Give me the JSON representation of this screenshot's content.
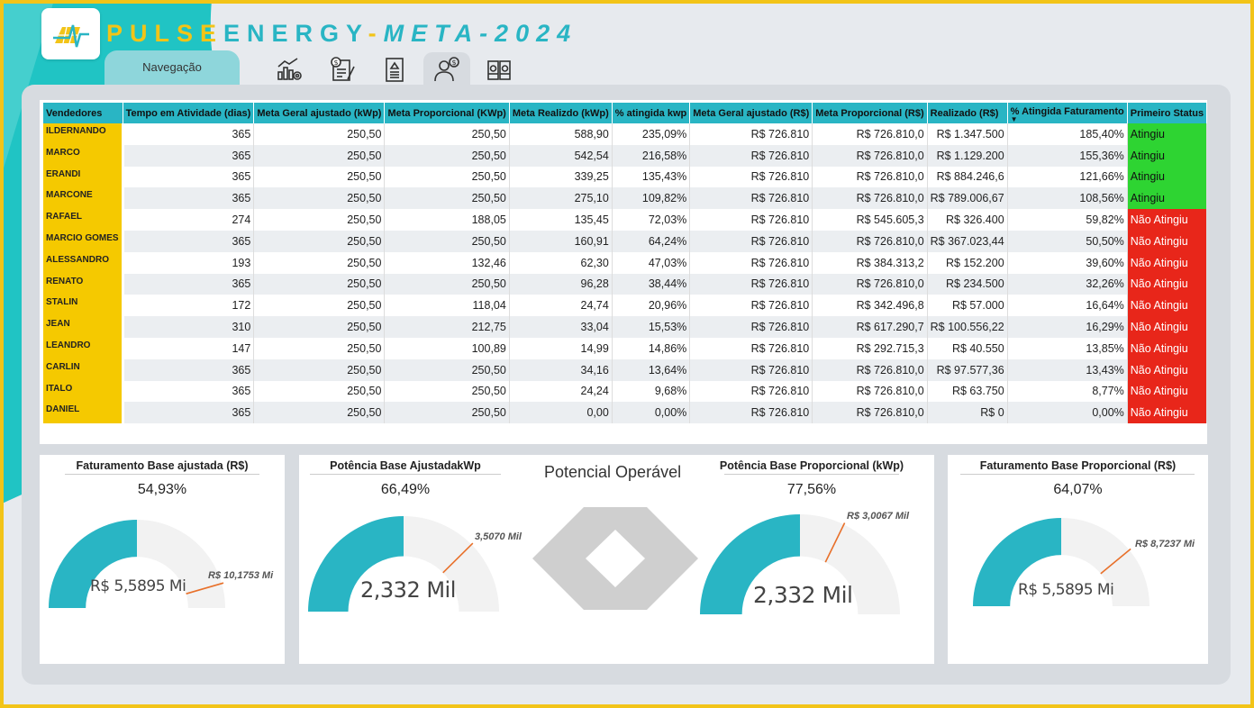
{
  "header": {
    "brand_part1": "PULSE",
    "brand_part2": "ENERGY",
    "brand_part3": "-",
    "brand_part4": "META-2024",
    "nav_tab_label": "Navegação",
    "nav_icons": [
      "chart-gear-icon",
      "document-dollar-icon",
      "report-document-icon",
      "person-dollar-icon",
      "money-stack-icon"
    ]
  },
  "table": {
    "columns": [
      "Vendedores",
      "Tempo em Atividade (dias)",
      "Meta Geral ajustado (kWp)",
      "Meta Proporcional (KWp)",
      "Meta Realizdo (kWp)",
      "% atingida kwp",
      "Meta Geral ajustado (R$)",
      "Meta Proporcional (R$)",
      "Realizado (R$)",
      "% Atingida Faturamento",
      "Primeiro Status"
    ],
    "rows": [
      {
        "name": "ILDERNANDO",
        "dias": "365",
        "meta_geral_kwp": "250,50",
        "meta_prop_kwp": "250,50",
        "realizado_kwp": "588,90",
        "pct_kwp": "235,09%",
        "meta_geral_rs": "R$ 726.810",
        "meta_prop_rs": "R$ 726.810,0",
        "realizado_rs": "R$ 1.347.500",
        "pct_fat": "185,40%",
        "status": "Atingiu"
      },
      {
        "name": "MARCO",
        "dias": "365",
        "meta_geral_kwp": "250,50",
        "meta_prop_kwp": "250,50",
        "realizado_kwp": "542,54",
        "pct_kwp": "216,58%",
        "meta_geral_rs": "R$ 726.810",
        "meta_prop_rs": "R$ 726.810,0",
        "realizado_rs": "R$ 1.129.200",
        "pct_fat": "155,36%",
        "status": "Atingiu"
      },
      {
        "name": "ERANDI",
        "dias": "365",
        "meta_geral_kwp": "250,50",
        "meta_prop_kwp": "250,50",
        "realizado_kwp": "339,25",
        "pct_kwp": "135,43%",
        "meta_geral_rs": "R$ 726.810",
        "meta_prop_rs": "R$ 726.810,0",
        "realizado_rs": "R$ 884.246,6",
        "pct_fat": "121,66%",
        "status": "Atingiu"
      },
      {
        "name": "MARCONE",
        "dias": "365",
        "meta_geral_kwp": "250,50",
        "meta_prop_kwp": "250,50",
        "realizado_kwp": "275,10",
        "pct_kwp": "109,82%",
        "meta_geral_rs": "R$ 726.810",
        "meta_prop_rs": "R$ 726.810,0",
        "realizado_rs": "R$ 789.006,67",
        "pct_fat": "108,56%",
        "status": "Atingiu"
      },
      {
        "name": "RAFAEL",
        "dias": "274",
        "meta_geral_kwp": "250,50",
        "meta_prop_kwp": "188,05",
        "realizado_kwp": "135,45",
        "pct_kwp": "72,03%",
        "meta_geral_rs": "R$ 726.810",
        "meta_prop_rs": "R$ 545.605,3",
        "realizado_rs": "R$ 326.400",
        "pct_fat": "59,82%",
        "status": "Não Atingiu"
      },
      {
        "name": "MARCIO GOMES",
        "dias": "365",
        "meta_geral_kwp": "250,50",
        "meta_prop_kwp": "250,50",
        "realizado_kwp": "160,91",
        "pct_kwp": "64,24%",
        "meta_geral_rs": "R$ 726.810",
        "meta_prop_rs": "R$ 726.810,0",
        "realizado_rs": "R$ 367.023,44",
        "pct_fat": "50,50%",
        "status": "Não Atingiu"
      },
      {
        "name": "ALESSANDRO",
        "dias": "193",
        "meta_geral_kwp": "250,50",
        "meta_prop_kwp": "132,46",
        "realizado_kwp": "62,30",
        "pct_kwp": "47,03%",
        "meta_geral_rs": "R$ 726.810",
        "meta_prop_rs": "R$ 384.313,2",
        "realizado_rs": "R$ 152.200",
        "pct_fat": "39,60%",
        "status": "Não Atingiu"
      },
      {
        "name": "RENATO",
        "dias": "365",
        "meta_geral_kwp": "250,50",
        "meta_prop_kwp": "250,50",
        "realizado_kwp": "96,28",
        "pct_kwp": "38,44%",
        "meta_geral_rs": "R$ 726.810",
        "meta_prop_rs": "R$ 726.810,0",
        "realizado_rs": "R$ 234.500",
        "pct_fat": "32,26%",
        "status": "Não Atingiu"
      },
      {
        "name": "STALIN",
        "dias": "172",
        "meta_geral_kwp": "250,50",
        "meta_prop_kwp": "118,04",
        "realizado_kwp": "24,74",
        "pct_kwp": "20,96%",
        "meta_geral_rs": "R$ 726.810",
        "meta_prop_rs": "R$ 342.496,8",
        "realizado_rs": "R$ 57.000",
        "pct_fat": "16,64%",
        "status": "Não Atingiu"
      },
      {
        "name": "JEAN",
        "dias": "310",
        "meta_geral_kwp": "250,50",
        "meta_prop_kwp": "212,75",
        "realizado_kwp": "33,04",
        "pct_kwp": "15,53%",
        "meta_geral_rs": "R$ 726.810",
        "meta_prop_rs": "R$ 617.290,7",
        "realizado_rs": "R$ 100.556,22",
        "pct_fat": "16,29%",
        "status": "Não Atingiu"
      },
      {
        "name": "LEANDRO",
        "dias": "147",
        "meta_geral_kwp": "250,50",
        "meta_prop_kwp": "100,89",
        "realizado_kwp": "14,99",
        "pct_kwp": "14,86%",
        "meta_geral_rs": "R$ 726.810",
        "meta_prop_rs": "R$ 292.715,3",
        "realizado_rs": "R$ 40.550",
        "pct_fat": "13,85%",
        "status": "Não Atingiu"
      },
      {
        "name": "CARLIN",
        "dias": "365",
        "meta_geral_kwp": "250,50",
        "meta_prop_kwp": "250,50",
        "realizado_kwp": "34,16",
        "pct_kwp": "13,64%",
        "meta_geral_rs": "R$ 726.810",
        "meta_prop_rs": "R$ 726.810,0",
        "realizado_rs": "R$ 97.577,36",
        "pct_fat": "13,43%",
        "status": "Não Atingiu"
      },
      {
        "name": "ITALO",
        "dias": "365",
        "meta_geral_kwp": "250,50",
        "meta_prop_kwp": "250,50",
        "realizado_kwp": "24,24",
        "pct_kwp": "9,68%",
        "meta_geral_rs": "R$ 726.810",
        "meta_prop_rs": "R$ 726.810,0",
        "realizado_rs": "R$ 63.750",
        "pct_fat": "8,77%",
        "status": "Não Atingiu"
      },
      {
        "name": "DANIEL",
        "dias": "365",
        "meta_geral_kwp": "250,50",
        "meta_prop_kwp": "250,50",
        "realizado_kwp": "0,00",
        "pct_kwp": "0,00%",
        "meta_geral_rs": "R$ 726.810",
        "meta_prop_rs": "R$ 726.810,0",
        "realizado_rs": "R$ 0",
        "pct_fat": "0,00%",
        "status": "Não Atingiu"
      }
    ]
  },
  "gauges": [
    {
      "title": "Faturamento Base ajustada (R$)",
      "pct": "54,93%",
      "fraction": 0.5493,
      "value": "R$ 5,5895 Mi",
      "target": "R$ 10,1753 Mi"
    },
    {
      "title": "Potência Base AjustadakWp",
      "pct": "66,49%",
      "fraction": 0.6649,
      "value": "2,332 Mil",
      "target": "3,5070 Mil"
    },
    {
      "title": "Potência Base Proporcional (kWp)",
      "pct": "77,56%",
      "fraction": 0.7756,
      "value": "2,332 Mil",
      "target": "R$ 3,0067 Mil"
    },
    {
      "title": "Faturamento Base Proporcional (R$)",
      "pct": "64,07%",
      "fraction": 0.6407,
      "value": "R$ 5,5895 Mi",
      "target": "R$ 8,7237 Mi"
    }
  ],
  "potencial_title": "Potencial Operável",
  "colors": {
    "teal": "#29b5c4",
    "yellow": "#f2c418",
    "ok": "#2ed432",
    "no": "#e8261a"
  }
}
